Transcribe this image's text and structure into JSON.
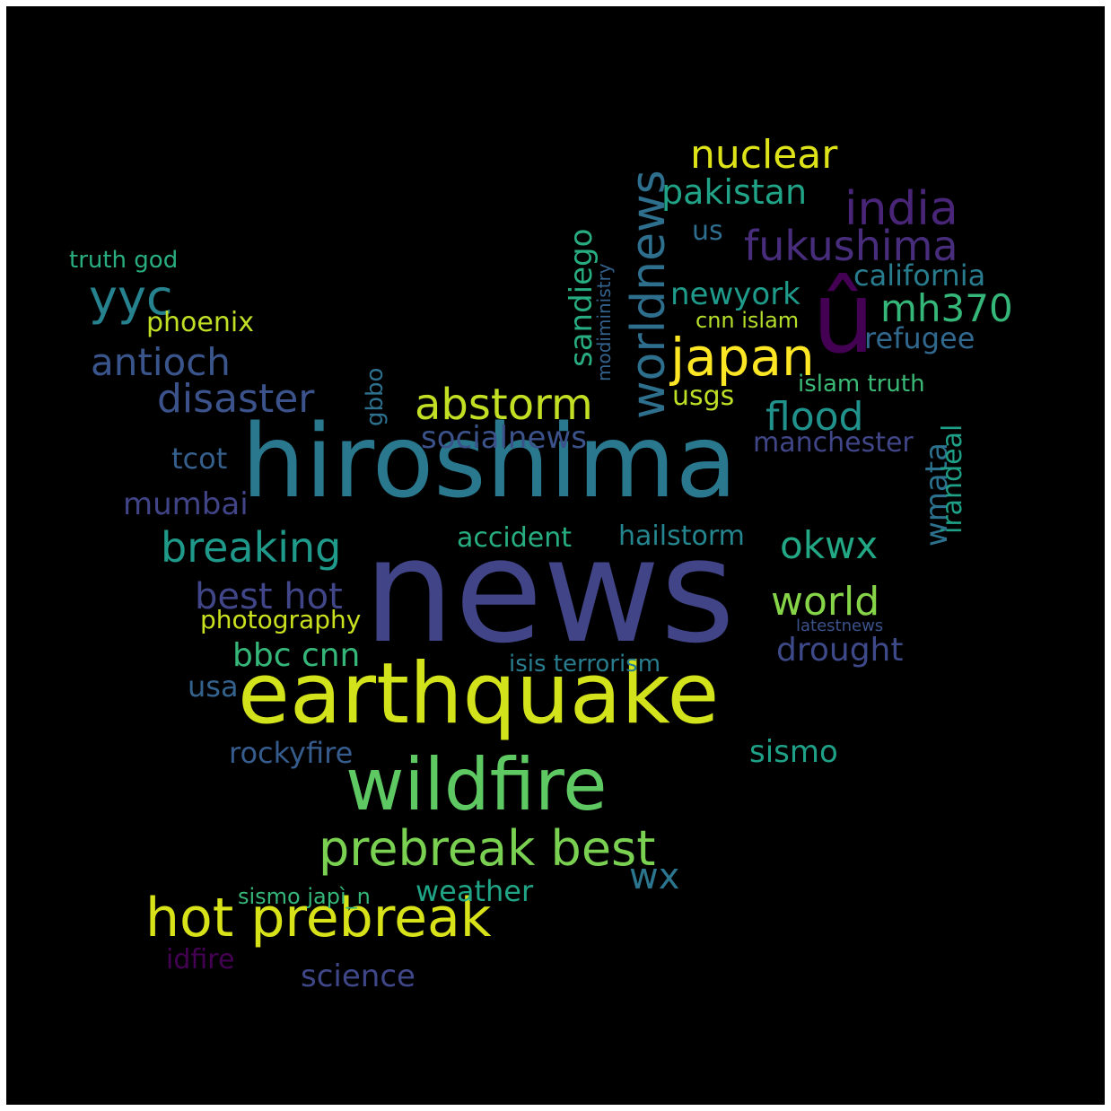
{
  "cloud": {
    "background": "#000000",
    "words": [
      {
        "text": "news",
        "color": "#414487"
      },
      {
        "text": "hiroshima",
        "color": "#2a788e"
      },
      {
        "text": "earthquake",
        "color": "#d2e21b"
      },
      {
        "text": "wildfire",
        "color": "#5ec962"
      },
      {
        "text": "prebreak best",
        "color": "#7ad151"
      },
      {
        "text": "hot prebreak",
        "color": "#d8e219"
      },
      {
        "text": "û",
        "color": "#440154"
      },
      {
        "text": "worldnews",
        "color": "#2e6f8e"
      },
      {
        "text": "japan",
        "color": "#fde725"
      },
      {
        "text": "abstorm",
        "color": "#c2df23"
      },
      {
        "text": "fukushima",
        "color": "#472d7b"
      },
      {
        "text": "india",
        "color": "#482576"
      },
      {
        "text": "nuclear",
        "color": "#dde318"
      },
      {
        "text": "pakistan",
        "color": "#20a386"
      },
      {
        "text": "mh370",
        "color": "#35b779"
      },
      {
        "text": "yyc",
        "color": "#26828e"
      },
      {
        "text": "breaking",
        "color": "#1f9a8a"
      },
      {
        "text": "disaster",
        "color": "#3b528b"
      },
      {
        "text": "antioch",
        "color": "#39558c"
      },
      {
        "text": "flood",
        "color": "#21918c"
      },
      {
        "text": "world",
        "color": "#86d549"
      },
      {
        "text": "okwx",
        "color": "#22a884"
      },
      {
        "text": "best hot",
        "color": "#404688"
      },
      {
        "text": "drought",
        "color": "#3e4989"
      },
      {
        "text": "socialnews",
        "color": "#3b528b"
      },
      {
        "text": "sandiego",
        "color": "#27ad81"
      },
      {
        "text": "wmata",
        "color": "#2c728e"
      },
      {
        "text": "irandeal",
        "color": "#1fa187"
      },
      {
        "text": "california",
        "color": "#287c8e"
      },
      {
        "text": "newyork",
        "color": "#1e9b8a"
      },
      {
        "text": "refugee",
        "color": "#31688e"
      },
      {
        "text": "mumbai",
        "color": "#414487"
      },
      {
        "text": "bbc cnn",
        "color": "#35b779"
      },
      {
        "text": "rockyfire",
        "color": "#365c8d"
      },
      {
        "text": "sismo",
        "color": "#1fa188"
      },
      {
        "text": "wx",
        "color": "#2b758e"
      },
      {
        "text": "science",
        "color": "#3f4788"
      },
      {
        "text": "weather",
        "color": "#20a486"
      },
      {
        "text": "phoenix",
        "color": "#c0df25"
      },
      {
        "text": "photography",
        "color": "#cae11f"
      },
      {
        "text": "usa",
        "color": "#33638d"
      },
      {
        "text": "accident",
        "color": "#27ad81"
      },
      {
        "text": "hailstorm",
        "color": "#24868e"
      },
      {
        "text": "isis terrorism",
        "color": "#287d8e"
      },
      {
        "text": "manchester",
        "color": "#404688"
      },
      {
        "text": "tcot",
        "color": "#355f8d"
      },
      {
        "text": "gbbo",
        "color": "#2d718e"
      },
      {
        "text": "usgs",
        "color": "#bddf26"
      },
      {
        "text": "us",
        "color": "#2e6e8e"
      },
      {
        "text": "cnn islam",
        "color": "#b5de2b"
      },
      {
        "text": "islam truth",
        "color": "#3aba76"
      },
      {
        "text": "idfire",
        "color": "#440154"
      },
      {
        "text": "sismo japì_n",
        "color": "#35b779"
      },
      {
        "text": "truth god",
        "color": "#29af7f"
      },
      {
        "text": "modiministry",
        "color": "#33638d"
      },
      {
        "text": "latestnews",
        "color": "#3b528b"
      }
    ]
  }
}
